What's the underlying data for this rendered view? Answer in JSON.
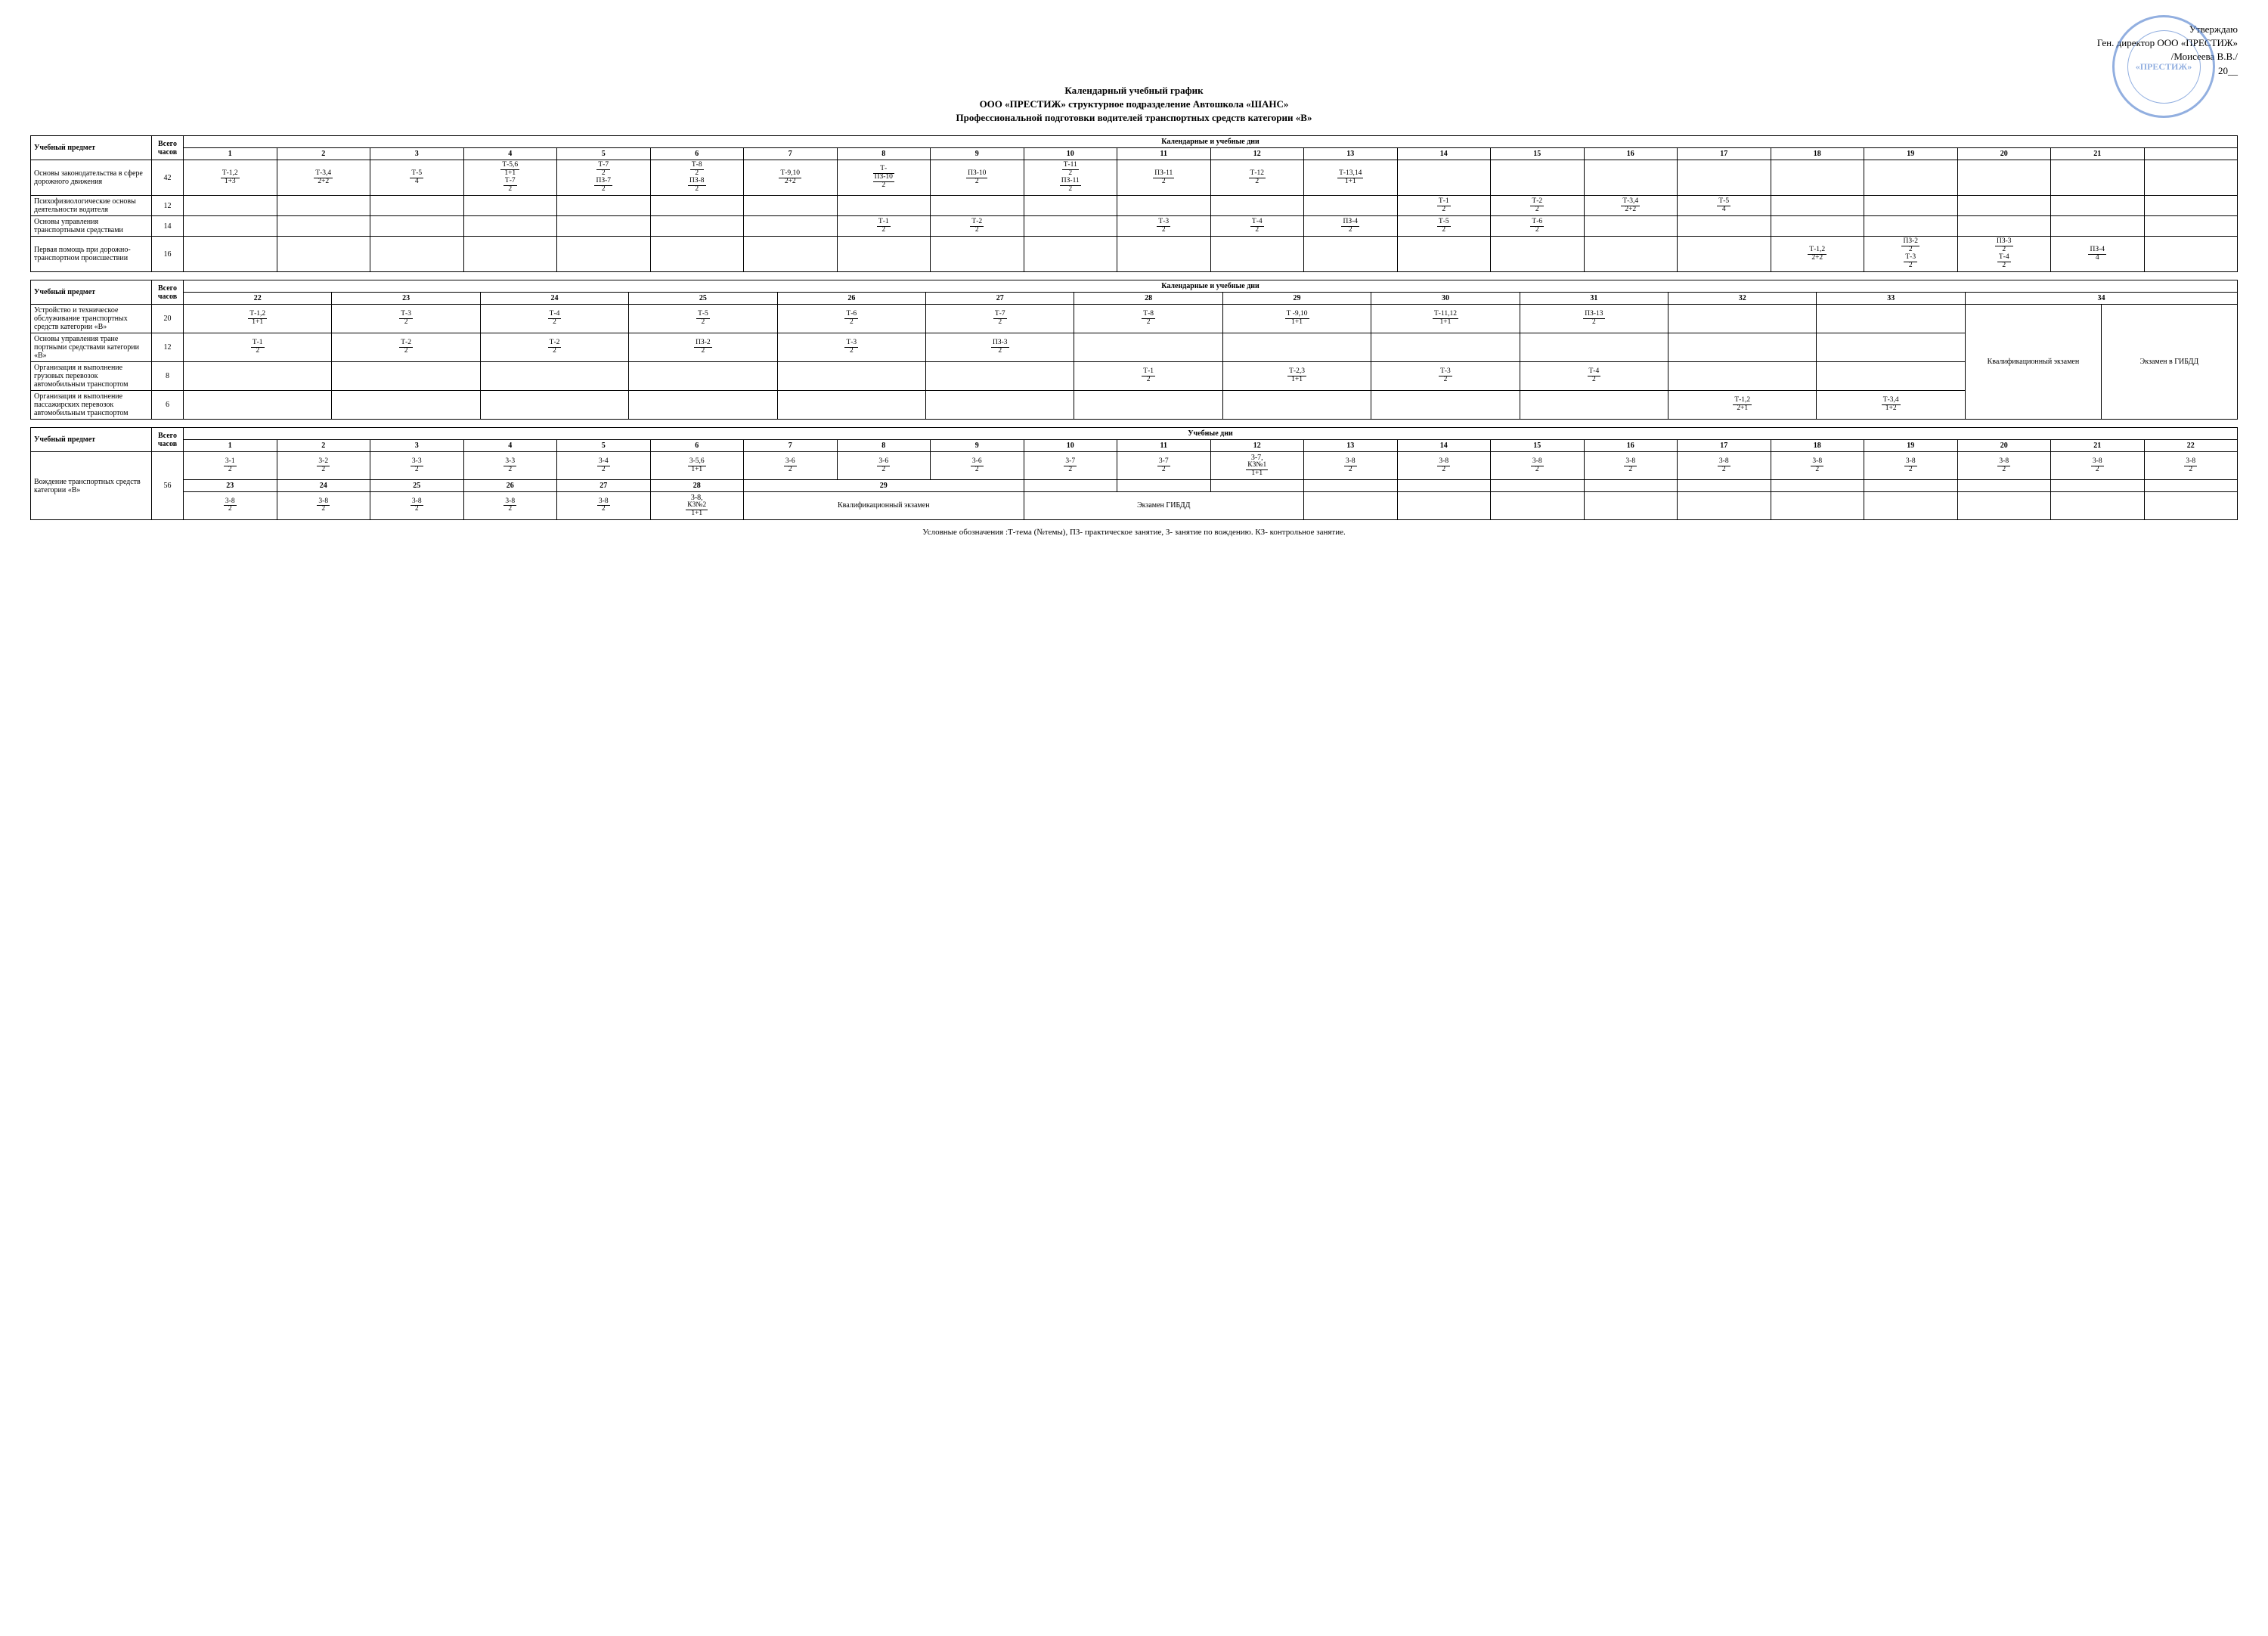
{
  "approval": {
    "line1": "Утверждаю",
    "line2": "Ген. директор ООО «ПРЕСТИЖ»",
    "line3": "/Моисеева В.В./",
    "line4_prefix": "20",
    "line4_suffix": "__"
  },
  "stamp_text": "«ПРЕСТИЖ»",
  "title": {
    "l1": "Календарный учебный график",
    "l2": "ООО «ПРЕСТИЖ» структурное подразделение Автошкола «ШАНС»",
    "l3": "Профессиональной подготовки водителей транспортных средств категории «В»"
  },
  "headers": {
    "subject": "Учебный предмет",
    "hours": "Всего часов",
    "cal_days": "Календарные и учебные дни",
    "study_days": "Учебные дни",
    "qual_exam": "Квалификационный экзамен",
    "gibdd_exam": "Экзамен в ГИБДД",
    "gibdd_exam2": "Экзамен ГИБДД",
    "qual_exam2": "Квалификационный экзамен"
  },
  "table1": {
    "days": [
      "1",
      "2",
      "3",
      "4",
      "5",
      "6",
      "7",
      "8",
      "9",
      "10",
      "11",
      "12",
      "13",
      "14",
      "15",
      "16",
      "17",
      "18",
      "19",
      "20",
      "21",
      ""
    ],
    "rows": [
      {
        "subject": "Основы законодательства в сфере дорожного движения",
        "hours": "42",
        "cells": [
          {
            "n": "Т-1,2",
            "d": "1+3"
          },
          {
            "n": "Т-3,4",
            "d": "2+2"
          },
          {
            "n": "Т-5",
            "d": "4"
          },
          {
            "stack": [
              {
                "n": "Т-5,6",
                "d": "1+1"
              },
              {
                "n": "Т-7",
                "d": "2"
              }
            ]
          },
          {
            "stack": [
              {
                "n": "Т-7",
                "d": "2"
              },
              {
                "n": "ПЗ-7",
                "d": "2"
              }
            ]
          },
          {
            "stack": [
              {
                "n": "Т-8",
                "d": "2"
              },
              {
                "n": "ПЗ-8",
                "d": "2"
              }
            ]
          },
          {
            "n": "Т-9,10",
            "d": "2+2"
          },
          {
            "n": "Т-",
            "d": "ПЗ-10",
            "d2": "2",
            "tri": true
          },
          {
            "n": "ПЗ-10",
            "d": "2"
          },
          {
            "stack": [
              {
                "n": "Т-11",
                "d": "2"
              },
              {
                "n": "ПЗ-11",
                "d": "2"
              }
            ]
          },
          {
            "n": "ПЗ-11",
            "d": "2"
          },
          {
            "n": "Т-12",
            "d": "2"
          },
          {
            "n": "Т-13,14",
            "d": "1+1"
          },
          "",
          "",
          "",
          "",
          "",
          "",
          "",
          "",
          ""
        ]
      },
      {
        "subject": "Психофизиологические основы деятельности водителя",
        "hours": "12",
        "cells": [
          "",
          "",
          "",
          "",
          "",
          "",
          "",
          "",
          "",
          "",
          "",
          "",
          "",
          {
            "n": "Т-1",
            "d": "2"
          },
          {
            "n": "Т-2",
            "d": "2"
          },
          {
            "n": "Т-3,4",
            "d": "2+2"
          },
          {
            "n": "Т-5",
            "d": "4"
          },
          "",
          "",
          "",
          "",
          ""
        ]
      },
      {
        "subject": "Основы управления транспортными средствами",
        "hours": "14",
        "cells": [
          "",
          "",
          "",
          "",
          "",
          "",
          "",
          {
            "n": "Т-1",
            "d": "2"
          },
          {
            "n": "Т-2",
            "d": "2"
          },
          "",
          {
            "n": "Т-3",
            "d": "2"
          },
          {
            "n": "Т-4",
            "d": "2"
          },
          {
            "n": "ПЗ-4",
            "d": "2"
          },
          {
            "n": "Т-5",
            "d": "2"
          },
          {
            "n": "Т-6",
            "d": "2"
          },
          "",
          "",
          "",
          "",
          "",
          "",
          ""
        ]
      },
      {
        "subject": "Первая помощь при дорожно-транспортном происшествии",
        "hours": "16",
        "cells": [
          "",
          "",
          "",
          "",
          "",
          "",
          "",
          "",
          "",
          "",
          "",
          "",
          "",
          "",
          "",
          "",
          "",
          {
            "n": "Т-1,2",
            "d": "2+2"
          },
          {
            "stack": [
              {
                "n": "ПЗ-2",
                "d": "2"
              },
              {
                "n": "Т-3",
                "d": "2"
              }
            ]
          },
          {
            "stack": [
              {
                "n": "ПЗ-3",
                "d": "2"
              },
              {
                "n": "Т-4",
                "d": "2"
              }
            ]
          },
          {
            "n": "ПЗ-4",
            "d": "4"
          },
          ""
        ]
      }
    ]
  },
  "table2": {
    "days": [
      "22",
      "23",
      "24",
      "25",
      "26",
      "27",
      "28",
      "29",
      "30",
      "31",
      "32",
      "33"
    ],
    "merged_34": "34",
    "rows": [
      {
        "subject": "Устройство и техническое обслуживание транспортных средств категории «В»",
        "hours": "20",
        "cells": [
          {
            "n": "Т-1,2",
            "d": "1+1"
          },
          {
            "n": "Т-3",
            "d": "2"
          },
          {
            "n": "Т-4",
            "d": "2"
          },
          {
            "n": "Т-5",
            "d": "2"
          },
          {
            "n": "Т-6",
            "d": "2"
          },
          {
            "n": "Т-7",
            "d": "2"
          },
          {
            "n": "Т-8",
            "d": "2"
          },
          {
            "n": "Т -9,10",
            "d": "1+1"
          },
          {
            "n": "Т-11,12",
            "d": "1+1"
          },
          {
            "n": "ПЗ-13",
            "d": "2"
          },
          "",
          ""
        ]
      },
      {
        "subject": "Основы управления тране портными средствами категории «В»",
        "hours": "12",
        "cells": [
          {
            "n": "Т-1",
            "d": "2"
          },
          {
            "n": "Т-2",
            "d": "2"
          },
          {
            "n": "Т-2",
            "d": "2"
          },
          {
            "n": "ПЗ-2",
            "d": "2"
          },
          {
            "n": "Т-3",
            "d": "2"
          },
          {
            "n": "ПЗ-3",
            "d": "2"
          },
          "",
          "",
          "",
          "",
          "",
          ""
        ]
      },
      {
        "subject": "Организация и выполнение грузовых перевозок автомобильным транспортом",
        "hours": "8",
        "cells": [
          "",
          "",
          "",
          "",
          "",
          "",
          {
            "n": "Т-1",
            "d": "2"
          },
          {
            "n": "Т-2,3",
            "d": "1+1"
          },
          {
            "n": "Т-3",
            "d": "2"
          },
          {
            "n": "Т-4",
            "d": "2"
          },
          "",
          ""
        ]
      },
      {
        "subject": "Организация и выполнение пассажирских перевозок автомобильным транспортом",
        "hours": "6",
        "cells": [
          "",
          "",
          "",
          "",
          "",
          "",
          "",
          "",
          "",
          "",
          {
            "n": "Т-1,2",
            "d": "2+1"
          },
          {
            "n": "Т-3,4",
            "d": "1+2"
          }
        ]
      }
    ]
  },
  "table3": {
    "subject": "Вождение транспортных средств категории «В»",
    "hours": "56",
    "row1_days": [
      "1",
      "2",
      "3",
      "4",
      "5",
      "6",
      "7",
      "8",
      "9",
      "10",
      "11",
      "12",
      "13",
      "14",
      "15",
      "16",
      "17",
      "18",
      "19",
      "20",
      "21",
      "22"
    ],
    "row1_cells": [
      {
        "n": "3-1",
        "d": "2"
      },
      {
        "n": "3-2",
        "d": "2"
      },
      {
        "n": "3-3",
        "d": "2"
      },
      {
        "n": "3-3",
        "d": "2"
      },
      {
        "n": "3-4",
        "d": "2"
      },
      {
        "n": "3-5,6",
        "d": "1+1"
      },
      {
        "n": "3-6",
        "d": "2"
      },
      {
        "n": "3-6",
        "d": "2"
      },
      {
        "n": "3-6",
        "d": "2"
      },
      {
        "n": "3-7",
        "d": "2"
      },
      {
        "n": "3-7",
        "d": "2"
      },
      {
        "stack": [
          {
            "n": "3-7,",
            "d": ""
          },
          {
            "n": "КЗ№1",
            "d": "1+1"
          }
        ]
      },
      {
        "n": "3-8",
        "d": "2"
      },
      {
        "n": "3-8",
        "d": "2"
      },
      {
        "n": "3-8",
        "d": "2"
      },
      {
        "n": "3-8",
        "d": "2"
      },
      {
        "n": "3-8",
        "d": "2"
      },
      {
        "n": "3-8",
        "d": "2"
      },
      {
        "n": "3-8",
        "d": "2"
      },
      {
        "n": "3-8",
        "d": "2"
      },
      {
        "n": "3-8",
        "d": "2"
      },
      {
        "n": "3-8",
        "d": "2"
      }
    ],
    "row2_days": [
      "23",
      "24",
      "25",
      "26",
      "27",
      "28"
    ],
    "row2_merged_29": "29",
    "row2_cells": [
      {
        "n": "3-8",
        "d": "2"
      },
      {
        "n": "3-8",
        "d": "2"
      },
      {
        "n": "3-8",
        "d": "2"
      },
      {
        "n": "3-8",
        "d": "2"
      },
      {
        "n": "3-8",
        "d": "2"
      },
      {
        "stack": [
          {
            "n": "3-8,",
            "d": ""
          },
          {
            "n": "КЗ№2",
            "d": "1+1"
          }
        ]
      }
    ]
  },
  "legend": "Условные обозначения :Т-тема (№темы), ПЗ- практическое занятие, З- занятие по вождению. КЗ- контрольное занятие."
}
